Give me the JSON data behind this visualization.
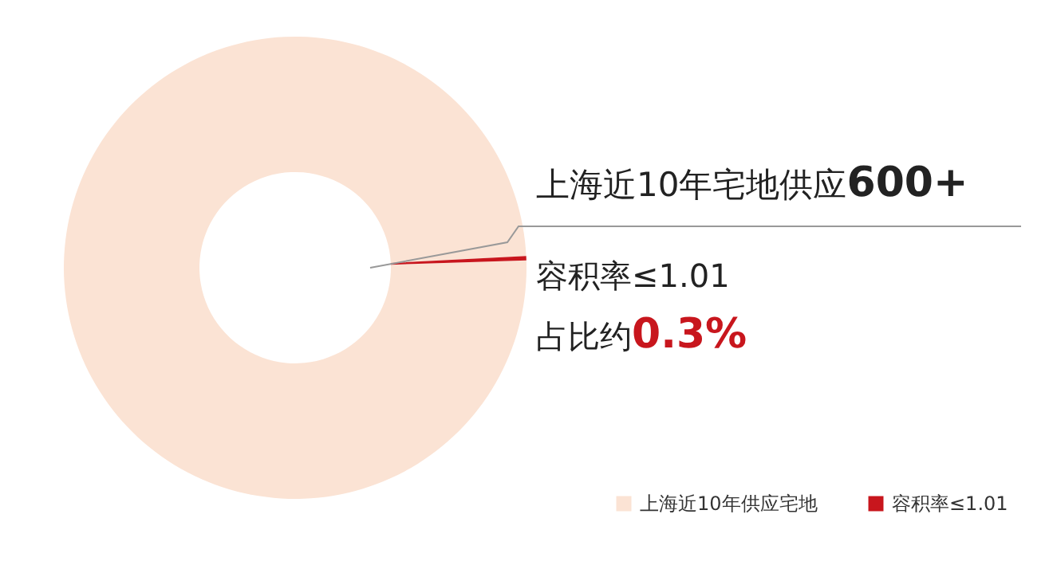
{
  "chart_data": {
    "type": "donut",
    "categories": [
      "上海近10年供应宅地",
      "容积率≤1.01"
    ],
    "values": [
      99.7,
      0.3
    ],
    "colors": [
      "#fbe3d4",
      "#c8161d"
    ],
    "legend": "bottom right",
    "annotations": [
      "上海近10年宅地供应600+",
      "容积率≤1.01",
      "占比约0.3%"
    ]
  }
}
